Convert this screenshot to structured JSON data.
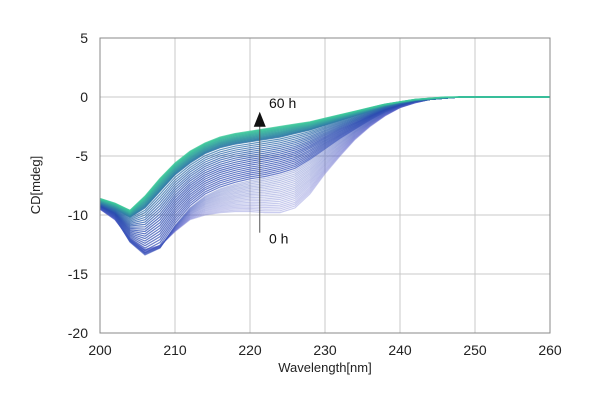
{
  "chart_data": {
    "type": "line",
    "xlabel": "Wavelength[nm]",
    "ylabel": "CD[mdeg]",
    "xlim": [
      200,
      260
    ],
    "ylim": [
      -20,
      5
    ],
    "xticks": [
      200,
      210,
      220,
      230,
      240,
      250,
      260
    ],
    "yticks": [
      5,
      0,
      -5,
      -10,
      -15,
      -20
    ],
    "grid": true,
    "legend": "none",
    "annotations": [
      {
        "text": "60 h",
        "x": 222,
        "y": -0.5
      },
      {
        "text": "0 h",
        "x": 222,
        "y": -12.0
      }
    ],
    "arrow": {
      "from": [
        221.3,
        -11.5
      ],
      "to": [
        221.3,
        -1.5
      ]
    },
    "colors": {
      "start": "#6a6fd0",
      "mid": "#2a4bb0",
      "end": "#3cc89a",
      "grid": "#c8c8c8",
      "axis": "#888888"
    },
    "series_count": 60,
    "series": [
      {
        "time_h": 0,
        "x": [
          200,
          202,
          204,
          206,
          208,
          210,
          212,
          214,
          216,
          218,
          220,
          222,
          224,
          226,
          228,
          230,
          232,
          234,
          236,
          238,
          240,
          242,
          244,
          246,
          248,
          250,
          252,
          254,
          256,
          258,
          260
        ],
        "y": [
          -9.5,
          -10.4,
          -12.0,
          -12.9,
          -12.6,
          -11.4,
          -10.4,
          -10.0,
          -9.8,
          -9.7,
          -9.7,
          -9.8,
          -9.8,
          -9.4,
          -8.2,
          -6.5,
          -5.0,
          -3.6,
          -2.5,
          -1.6,
          -0.9,
          -0.5,
          -0.2,
          -0.1,
          0.0,
          0.0,
          0.0,
          0.0,
          0.0,
          0.0,
          0.0
        ]
      },
      {
        "time_h": 20,
        "x": [
          200,
          202,
          204,
          206,
          208,
          210,
          212,
          214,
          216,
          218,
          220,
          222,
          224,
          226,
          228,
          230,
          232,
          234,
          236,
          238,
          240,
          242,
          244,
          246,
          248,
          250,
          252,
          254,
          256,
          258,
          260
        ],
        "y": [
          -9.4,
          -10.2,
          -12.3,
          -13.4,
          -12.8,
          -10.9,
          -9.4,
          -8.4,
          -7.8,
          -7.4,
          -7.1,
          -6.9,
          -6.6,
          -6.2,
          -5.4,
          -4.5,
          -3.6,
          -2.8,
          -2.0,
          -1.3,
          -0.8,
          -0.4,
          -0.2,
          -0.1,
          0.0,
          0.0,
          0.0,
          0.0,
          0.0,
          0.0,
          0.0
        ]
      },
      {
        "time_h": 40,
        "x": [
          200,
          202,
          204,
          206,
          208,
          210,
          212,
          214,
          216,
          218,
          220,
          222,
          224,
          226,
          228,
          230,
          232,
          234,
          236,
          238,
          240,
          242,
          244,
          246,
          248,
          250,
          252,
          254,
          256,
          258,
          260
        ],
        "y": [
          -9.0,
          -9.5,
          -10.2,
          -9.4,
          -8.0,
          -6.6,
          -5.6,
          -4.8,
          -4.3,
          -4.0,
          -3.8,
          -3.6,
          -3.4,
          -3.1,
          -2.8,
          -2.4,
          -2.0,
          -1.6,
          -1.2,
          -0.8,
          -0.5,
          -0.3,
          -0.2,
          -0.1,
          0.0,
          0.0,
          0.0,
          0.0,
          0.0,
          0.0,
          0.0
        ]
      },
      {
        "time_h": 60,
        "x": [
          200,
          202,
          204,
          206,
          208,
          210,
          212,
          214,
          216,
          218,
          220,
          222,
          224,
          226,
          228,
          230,
          232,
          234,
          236,
          238,
          240,
          242,
          244,
          246,
          248,
          250,
          252,
          254,
          256,
          258,
          260
        ],
        "y": [
          -8.6,
          -9.0,
          -9.6,
          -8.4,
          -6.9,
          -5.6,
          -4.6,
          -3.9,
          -3.4,
          -3.1,
          -2.9,
          -2.7,
          -2.5,
          -2.3,
          -2.1,
          -1.8,
          -1.5,
          -1.2,
          -0.9,
          -0.6,
          -0.4,
          -0.2,
          -0.1,
          0.0,
          0.0,
          0.0,
          0.0,
          0.0,
          0.0,
          0.0,
          0.0
        ]
      }
    ]
  }
}
